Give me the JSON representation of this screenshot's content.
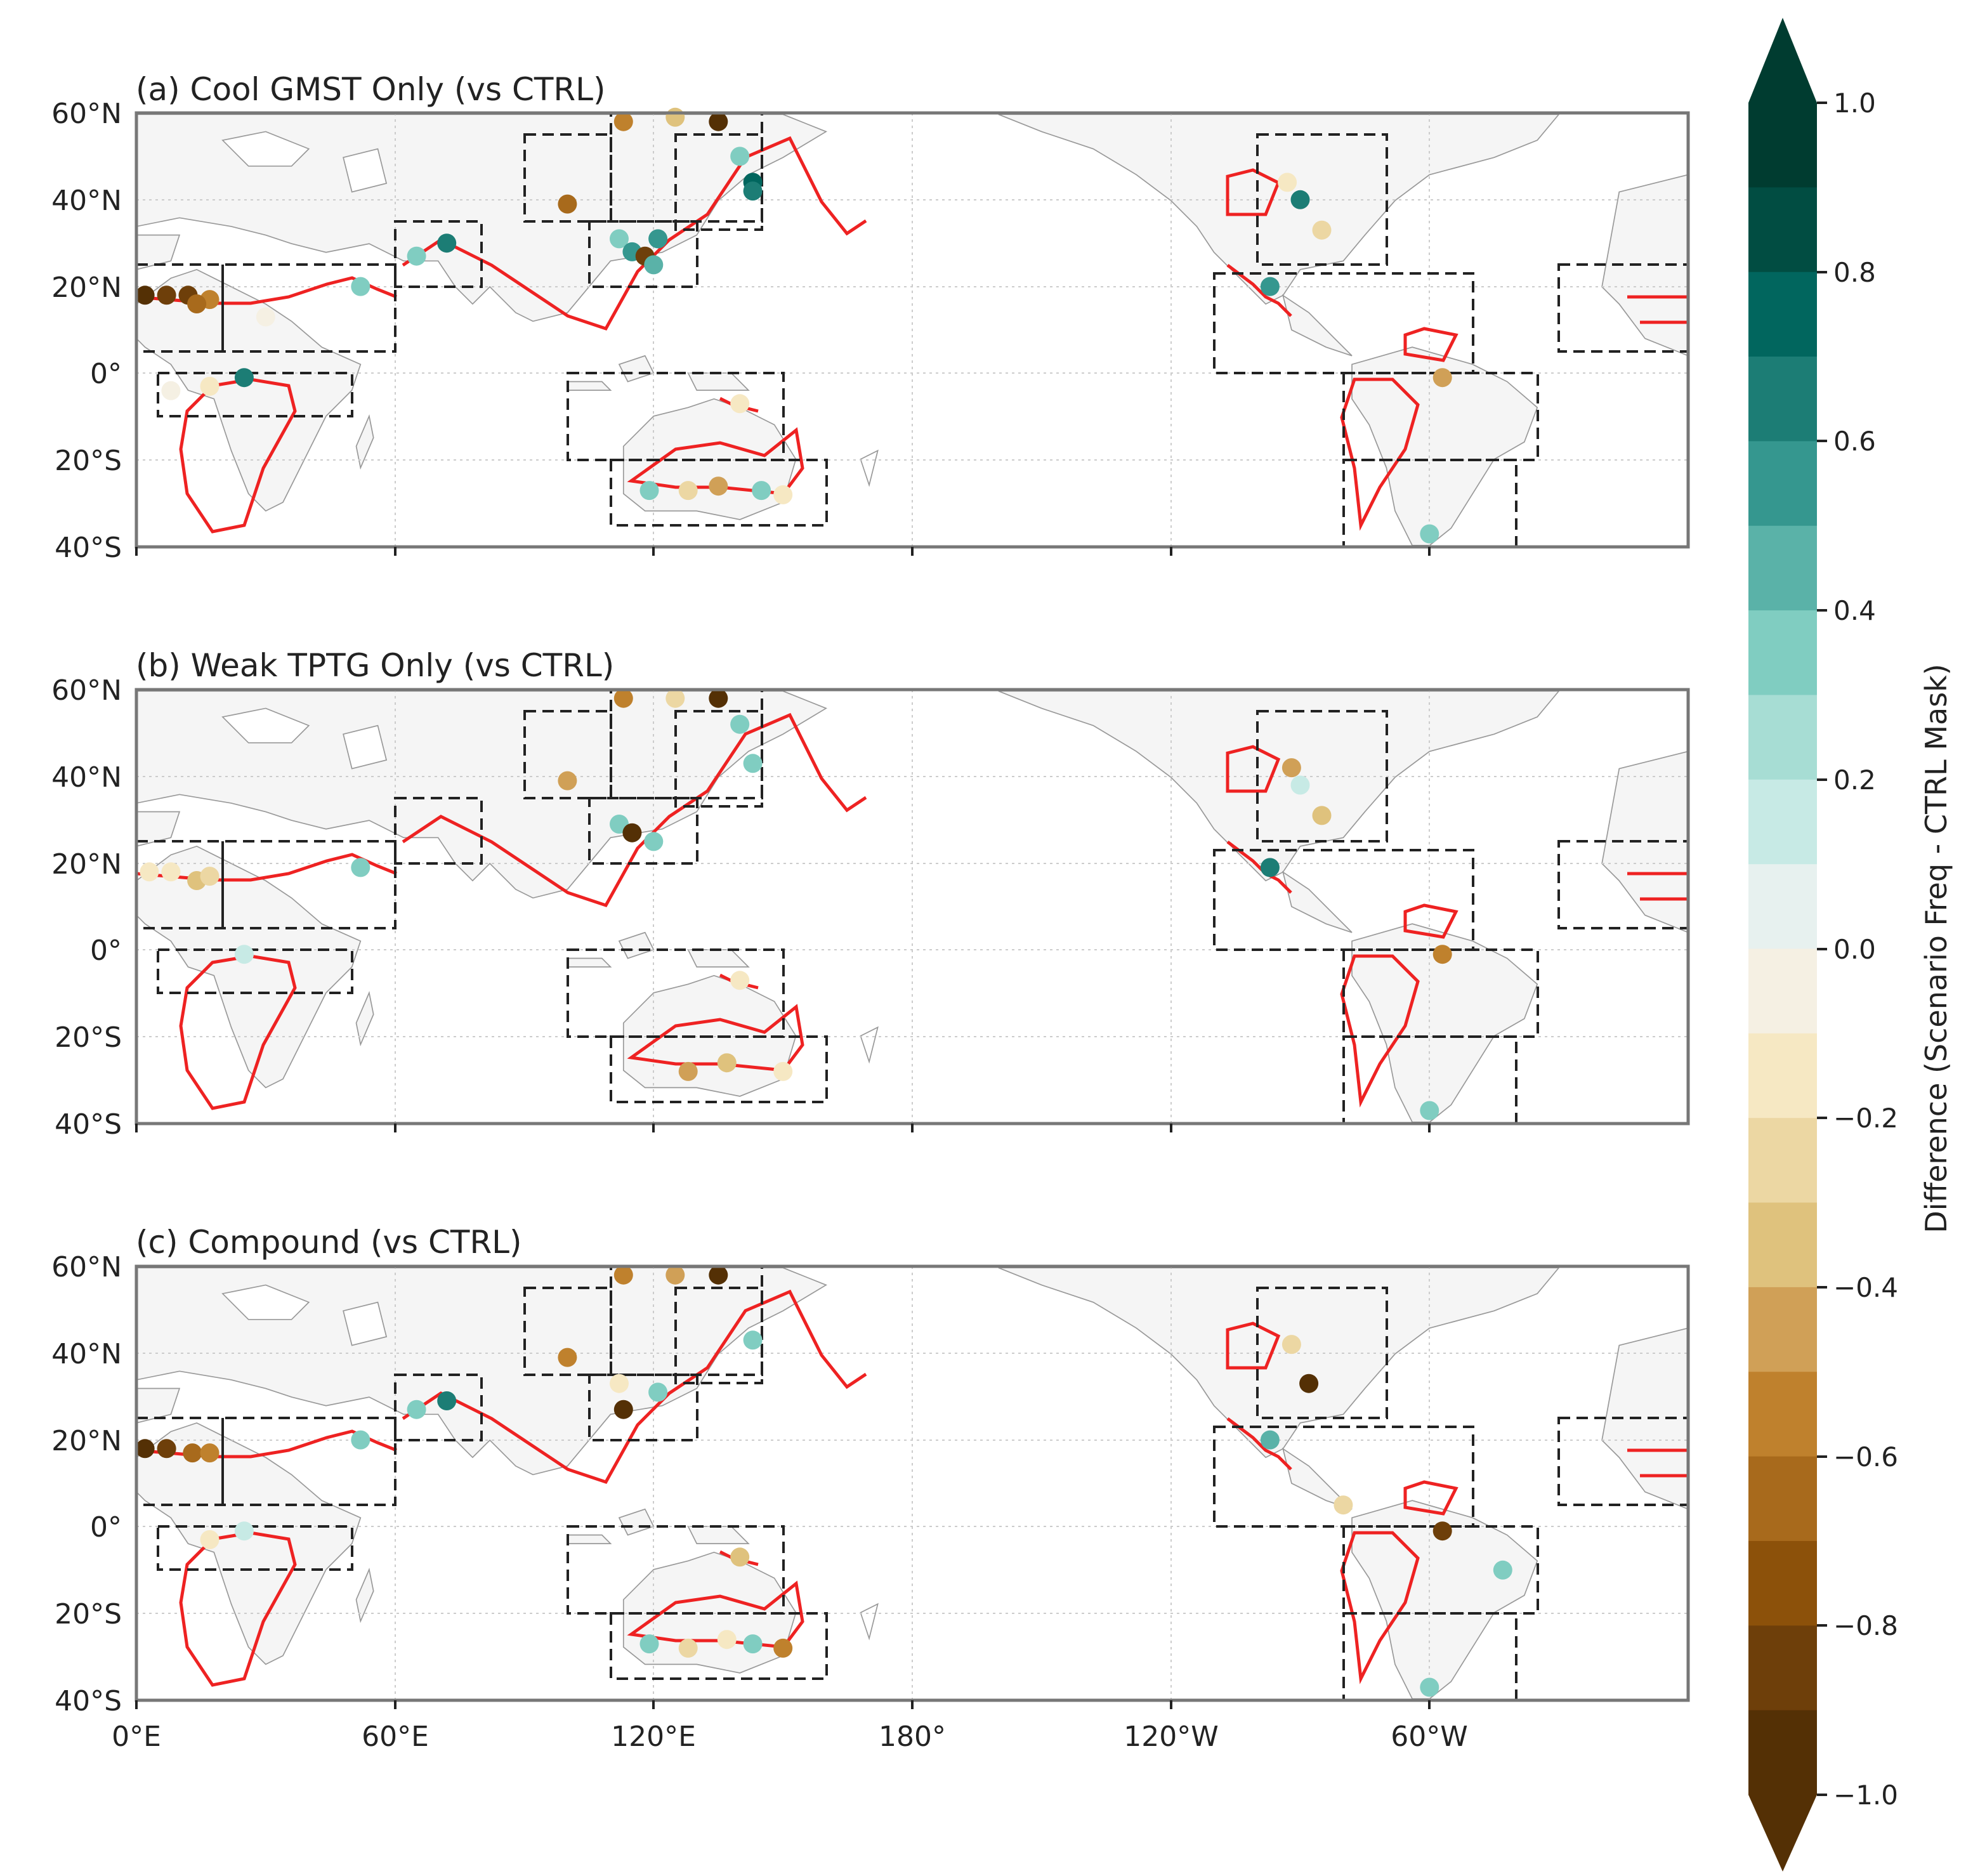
{
  "figure": {
    "panels": [
      {
        "title": "(a) Cool GMST Only (vs CTRL)"
      },
      {
        "title": "(b) Weak TPTG Only (vs CTRL)"
      },
      {
        "title": "(c) Compound (vs CTRL)"
      }
    ],
    "lat_ticks": [
      "60°N",
      "40°N",
      "20°N",
      "0°",
      "20°S",
      "40°S"
    ],
    "lon_ticks": [
      "0°E",
      "60°E",
      "120°E",
      "180°",
      "120°W",
      "60°W"
    ],
    "colorbar": {
      "label": "Difference (Scenario Freq - CTRL Mask)",
      "ticks": [
        "1.0",
        "0.8",
        "0.6",
        "0.4",
        "0.2",
        "0.0",
        "−0.2",
        "−0.4",
        "−0.6",
        "−0.8",
        "−1.0"
      ],
      "range": [
        -1.0,
        1.0
      ],
      "levels": 20,
      "extend": "both",
      "colors": [
        "#543005",
        "#6e3f0a",
        "#8c510a",
        "#a86a1c",
        "#bf812d",
        "#d0a057",
        "#dfc27d",
        "#ecd7a3",
        "#f6e8c3",
        "#f5f0e3",
        "#e7f1ef",
        "#c7eae5",
        "#a7ddd4",
        "#80cdc1",
        "#5ab2a8",
        "#35978f",
        "#1c7d75",
        "#01665e",
        "#014d42",
        "#003c30"
      ],
      "over_color": "#003c30",
      "under_color": "#543005"
    },
    "overlay_colors": {
      "land": "#f5f5f5",
      "coast": "#999999",
      "mask_contour": "#ee2222",
      "region_box": "#222222"
    }
  },
  "chart_data": {
    "type": "scatter",
    "projection": "PlateCarree, central longitude 180°E",
    "lat_range": [
      -40,
      60
    ],
    "lon_range": [
      0,
      360
    ],
    "value_range": [
      -1.0,
      1.0
    ],
    "regions": [
      {
        "lon": [
          0,
          60
        ],
        "lat": [
          5,
          25
        ]
      },
      {
        "lon": [
          5,
          50
        ],
        "lat": [
          -10,
          0
        ]
      },
      {
        "lon": [
          60,
          80
        ],
        "lat": [
          20,
          35
        ]
      },
      {
        "lon": [
          90,
          110
        ],
        "lat": [
          35,
          55
        ]
      },
      {
        "lon": [
          110,
          145
        ],
        "lat": [
          35,
          60
        ]
      },
      {
        "lon": [
          125,
          145
        ],
        "lat": [
          33,
          55
        ]
      },
      {
        "lon": [
          105,
          130
        ],
        "lat": [
          20,
          35
        ]
      },
      {
        "lon": [
          100,
          150
        ],
        "lat": [
          -20,
          0
        ]
      },
      {
        "lon": [
          110,
          160
        ],
        "lat": [
          -35,
          -20
        ]
      },
      {
        "lon": [
          260,
          290
        ],
        "lat": [
          25,
          55
        ]
      },
      {
        "lon": [
          250,
          310
        ],
        "lat": [
          0,
          23
        ]
      },
      {
        "lon": [
          280,
          325
        ],
        "lat": [
          -20,
          0
        ]
      },
      {
        "lon": [
          280,
          320
        ],
        "lat": [
          -40,
          -20
        ]
      },
      {
        "lon": [
          330,
          360
        ],
        "lat": [
          5,
          25
        ]
      }
    ],
    "series": [
      {
        "name": "(a) Cool GMST Only (vs CTRL)",
        "points": [
          {
            "lon": 2,
            "lat": 18,
            "v": -0.9
          },
          {
            "lon": 7,
            "lat": 18,
            "v": -0.8
          },
          {
            "lon": 12,
            "lat": 18,
            "v": -0.8
          },
          {
            "lon": 17,
            "lat": 17,
            "v": -0.6
          },
          {
            "lon": 14,
            "lat": 16,
            "v": -0.7
          },
          {
            "lon": 30,
            "lat": 13,
            "v": -0.1
          },
          {
            "lon": 52,
            "lat": 20,
            "v": 0.3
          },
          {
            "lon": 25,
            "lat": -1,
            "v": 0.65
          },
          {
            "lon": 17,
            "lat": -3,
            "v": -0.2
          },
          {
            "lon": 8,
            "lat": -4,
            "v": -0.1
          },
          {
            "lon": 65,
            "lat": 27,
            "v": 0.3
          },
          {
            "lon": 72,
            "lat": 30,
            "v": 0.65
          },
          {
            "lon": 100,
            "lat": 39,
            "v": -0.7
          },
          {
            "lon": 113,
            "lat": 58,
            "v": -0.6
          },
          {
            "lon": 125,
            "lat": 59,
            "v": -0.4
          },
          {
            "lon": 135,
            "lat": 58,
            "v": -0.9
          },
          {
            "lon": 140,
            "lat": 50,
            "v": 0.3
          },
          {
            "lon": 143,
            "lat": 44,
            "v": 0.7
          },
          {
            "lon": 143,
            "lat": 42,
            "v": 0.6
          },
          {
            "lon": 112,
            "lat": 31,
            "v": 0.3
          },
          {
            "lon": 115,
            "lat": 28,
            "v": 0.5
          },
          {
            "lon": 118,
            "lat": 27,
            "v": -0.8
          },
          {
            "lon": 121,
            "lat": 31,
            "v": 0.5
          },
          {
            "lon": 120,
            "lat": 25,
            "v": 0.4
          },
          {
            "lon": 119,
            "lat": -27,
            "v": 0.35
          },
          {
            "lon": 128,
            "lat": -27,
            "v": -0.25
          },
          {
            "lon": 135,
            "lat": -26,
            "v": -0.5
          },
          {
            "lon": 145,
            "lat": -27,
            "v": 0.35
          },
          {
            "lon": 150,
            "lat": -28,
            "v": -0.2
          },
          {
            "lon": 140,
            "lat": -7,
            "v": -0.2
          },
          {
            "lon": 267,
            "lat": 44,
            "v": -0.2
          },
          {
            "lon": 270,
            "lat": 40,
            "v": 0.6
          },
          {
            "lon": 275,
            "lat": 33,
            "v": -0.3
          },
          {
            "lon": 263,
            "lat": 20,
            "v": 0.55
          },
          {
            "lon": 303,
            "lat": -1,
            "v": -0.5
          },
          {
            "lon": 300,
            "lat": -37,
            "v": 0.3
          }
        ]
      },
      {
        "name": "(b) Weak TPTG Only (vs CTRL)",
        "points": [
          {
            "lon": 3,
            "lat": 18,
            "v": -0.2
          },
          {
            "lon": 8,
            "lat": 18,
            "v": -0.15
          },
          {
            "lon": 14,
            "lat": 16,
            "v": -0.35
          },
          {
            "lon": 17,
            "lat": 17,
            "v": -0.25
          },
          {
            "lon": 52,
            "lat": 19,
            "v": 0.3
          },
          {
            "lon": 25,
            "lat": -1,
            "v": 0.15
          },
          {
            "lon": 100,
            "lat": 39,
            "v": -0.5
          },
          {
            "lon": 113,
            "lat": 58,
            "v": -0.6
          },
          {
            "lon": 125,
            "lat": 58,
            "v": -0.3
          },
          {
            "lon": 135,
            "lat": 58,
            "v": -0.9
          },
          {
            "lon": 140,
            "lat": 52,
            "v": 0.3
          },
          {
            "lon": 143,
            "lat": 43,
            "v": 0.3
          },
          {
            "lon": 112,
            "lat": 29,
            "v": 0.3
          },
          {
            "lon": 115,
            "lat": 27,
            "v": -0.9
          },
          {
            "lon": 120,
            "lat": 25,
            "v": 0.3
          },
          {
            "lon": 128,
            "lat": -28,
            "v": -0.5
          },
          {
            "lon": 137,
            "lat": -26,
            "v": -0.4
          },
          {
            "lon": 150,
            "lat": -28,
            "v": -0.2
          },
          {
            "lon": 140,
            "lat": -7,
            "v": -0.2
          },
          {
            "lon": 268,
            "lat": 42,
            "v": -0.5
          },
          {
            "lon": 270,
            "lat": 38,
            "v": 0.15
          },
          {
            "lon": 275,
            "lat": 31,
            "v": -0.35
          },
          {
            "lon": 263,
            "lat": 19,
            "v": 0.6
          },
          {
            "lon": 303,
            "lat": -1,
            "v": -0.6
          },
          {
            "lon": 300,
            "lat": -37,
            "v": 0.3
          }
        ]
      },
      {
        "name": "(c) Compound (vs CTRL)",
        "points": [
          {
            "lon": 2,
            "lat": 18,
            "v": -0.9
          },
          {
            "lon": 7,
            "lat": 18,
            "v": -0.8
          },
          {
            "lon": 13,
            "lat": 17,
            "v": -0.7
          },
          {
            "lon": 17,
            "lat": 17,
            "v": -0.6
          },
          {
            "lon": 52,
            "lat": 20,
            "v": 0.3
          },
          {
            "lon": 25,
            "lat": -1,
            "v": 0.15
          },
          {
            "lon": 17,
            "lat": -3,
            "v": -0.2
          },
          {
            "lon": 65,
            "lat": 27,
            "v": 0.3
          },
          {
            "lon": 72,
            "lat": 29,
            "v": 0.65
          },
          {
            "lon": 100,
            "lat": 39,
            "v": -0.6
          },
          {
            "lon": 113,
            "lat": 58,
            "v": -0.6
          },
          {
            "lon": 125,
            "lat": 58,
            "v": -0.5
          },
          {
            "lon": 135,
            "lat": 58,
            "v": -0.9
          },
          {
            "lon": 143,
            "lat": 43,
            "v": 0.35
          },
          {
            "lon": 112,
            "lat": 33,
            "v": -0.2
          },
          {
            "lon": 113,
            "lat": 27,
            "v": -0.9
          },
          {
            "lon": 121,
            "lat": 31,
            "v": 0.3
          },
          {
            "lon": 119,
            "lat": -27,
            "v": 0.35
          },
          {
            "lon": 128,
            "lat": -28,
            "v": -0.25
          },
          {
            "lon": 137,
            "lat": -26,
            "v": -0.2
          },
          {
            "lon": 143,
            "lat": -27,
            "v": 0.3
          },
          {
            "lon": 150,
            "lat": -28,
            "v": -0.6
          },
          {
            "lon": 140,
            "lat": -7,
            "v": -0.4
          },
          {
            "lon": 268,
            "lat": 42,
            "v": -0.3
          },
          {
            "lon": 272,
            "lat": 33,
            "v": -0.9
          },
          {
            "lon": 263,
            "lat": 20,
            "v": 0.4
          },
          {
            "lon": 303,
            "lat": -1,
            "v": -0.85
          },
          {
            "lon": 300,
            "lat": -37,
            "v": 0.3
          },
          {
            "lon": 317,
            "lat": -10,
            "v": 0.3
          },
          {
            "lon": 280,
            "lat": 5,
            "v": -0.3
          }
        ]
      }
    ]
  }
}
